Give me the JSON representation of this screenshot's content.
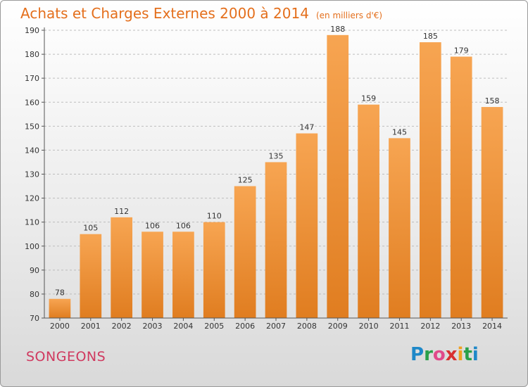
{
  "title": "Achats et Charges Externes 2000 à 2014",
  "subtitle": "(en milliers d'€)",
  "commune": "SONGEONS",
  "logo": {
    "letters": [
      "P",
      "r",
      "o",
      "x",
      "i",
      "t",
      "i"
    ],
    "colors": [
      "#1e88c8",
      "#2aa04a",
      "#e04a8a",
      "#d83030",
      "#f0a020",
      "#2aa04a",
      "#1e88c8"
    ]
  },
  "colors": {
    "bar_light": "#f7a552",
    "bar_dark": "#e07d20",
    "title": "#e46f1c",
    "commune": "#d0395f"
  },
  "chart_data": {
    "type": "bar",
    "title": "Achats et Charges Externes 2000 à 2014",
    "subtitle": "(en milliers d'€)",
    "categories": [
      "2000",
      "2001",
      "2002",
      "2003",
      "2004",
      "2005",
      "2006",
      "2007",
      "2008",
      "2009",
      "2010",
      "2011",
      "2012",
      "2013",
      "2014"
    ],
    "values": [
      78,
      105,
      112,
      106,
      106,
      110,
      125,
      135,
      147,
      188,
      159,
      145,
      185,
      179,
      158
    ],
    "ylim": [
      70,
      190
    ],
    "yticks": [
      70,
      80,
      90,
      100,
      110,
      120,
      130,
      140,
      150,
      160,
      170,
      180,
      190
    ],
    "grid": "horizontal-dashed"
  }
}
